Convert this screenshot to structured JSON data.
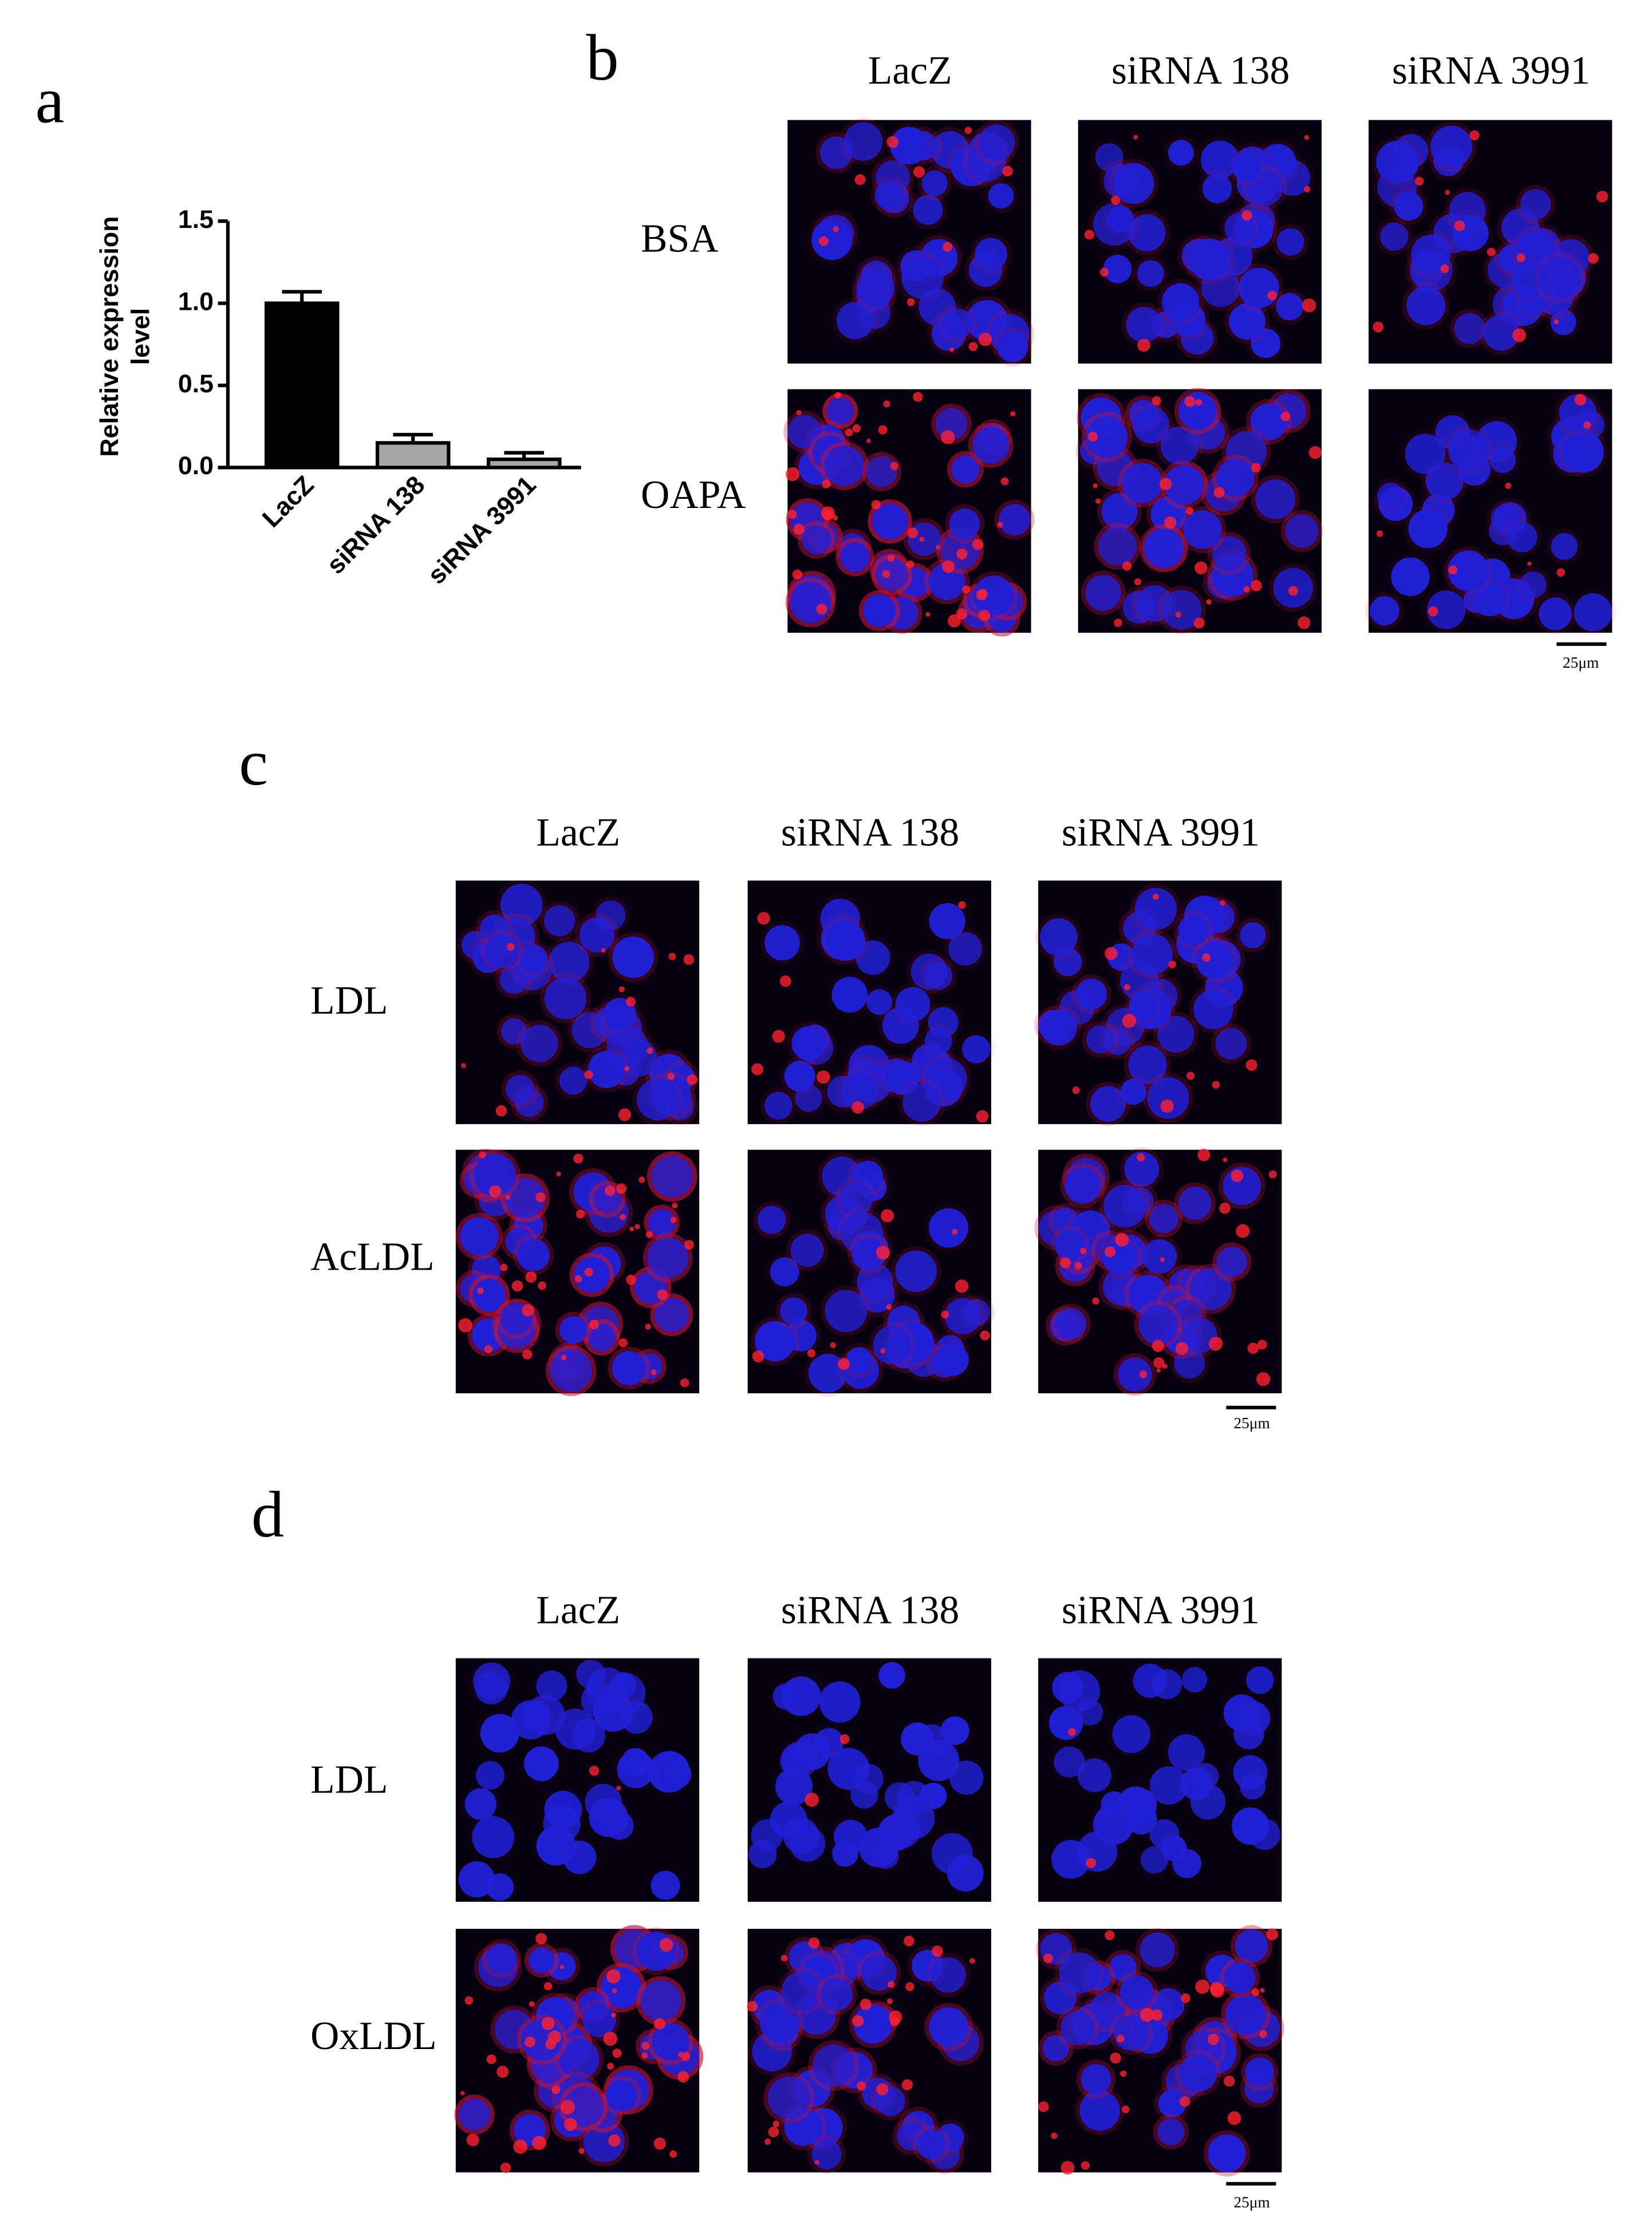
{
  "chart_data": {
    "type": "bar",
    "panel_label": "a",
    "y_label": [
      "Relative expression",
      "level"
    ],
    "categories": [
      "LacZ",
      "siRNA 138",
      "siRNA 3991"
    ],
    "values": [
      1.0,
      0.15,
      0.05
    ],
    "errors": [
      0.07,
      0.05,
      0.04
    ],
    "colors": [
      "#000000",
      "#a6a6a6",
      "#a6a6a6"
    ],
    "ylim": [
      0,
      1.5
    ],
    "yticks": [
      {
        "value": 0,
        "label": "0.0"
      },
      {
        "value": 0.5,
        "label": "0.5"
      },
      {
        "value": 1,
        "label": "1.0"
      },
      {
        "value": 1.5,
        "label": "1.5"
      }
    ]
  },
  "image_panels": [
    {
      "label": "b",
      "columns": [
        "LacZ",
        "siRNA 138",
        "siRNA 3991"
      ],
      "rows": [
        "BSA",
        "OAPA"
      ],
      "scale_bar": "25μm"
    },
    {
      "label": "c",
      "columns": [
        "LacZ",
        "siRNA 138",
        "siRNA 3991"
      ],
      "rows": [
        "LDL",
        "AcLDL"
      ],
      "scale_bar": "25μm"
    },
    {
      "label": "d",
      "columns": [
        "LacZ",
        "siRNA 138",
        "siRNA 3991"
      ],
      "rows": [
        "LDL",
        "OxLDL"
      ],
      "scale_bar": "25μm"
    }
  ]
}
